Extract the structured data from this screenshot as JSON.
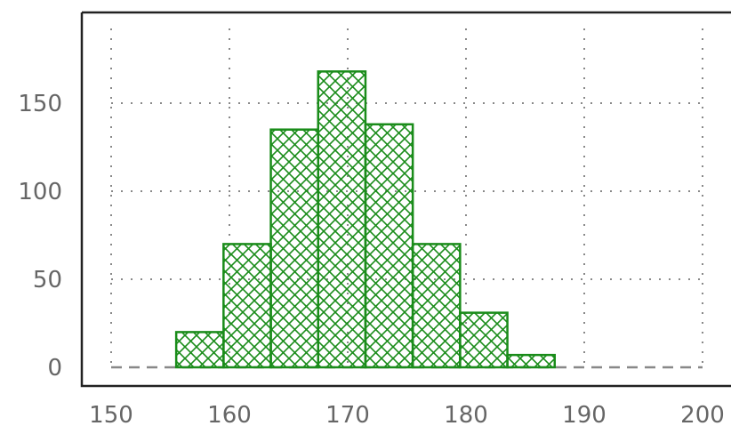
{
  "chart_data": {
    "type": "bar",
    "variant": "histogram",
    "title": "",
    "xlabel": "",
    "ylabel": "",
    "xlim": [
      150,
      200
    ],
    "ylim": [
      0,
      200
    ],
    "grid": "dotted",
    "bar_fill": "crosshatch",
    "bar_color": "#1a8c1a",
    "bins": [
      {
        "start": 155.5,
        "end": 159.5,
        "value": 20
      },
      {
        "start": 159.5,
        "end": 163.5,
        "value": 70
      },
      {
        "start": 163.5,
        "end": 167.5,
        "value": 135
      },
      {
        "start": 167.5,
        "end": 171.5,
        "value": 168
      },
      {
        "start": 171.5,
        "end": 175.5,
        "value": 138
      },
      {
        "start": 175.5,
        "end": 179.5,
        "value": 70
      },
      {
        "start": 179.5,
        "end": 183.5,
        "value": 31
      },
      {
        "start": 183.5,
        "end": 187.5,
        "value": 7
      }
    ],
    "x_ticks": [
      "150",
      "160",
      "170",
      "180",
      "190",
      "200"
    ],
    "y_ticks": [
      "0",
      "50",
      "100",
      "150"
    ]
  }
}
